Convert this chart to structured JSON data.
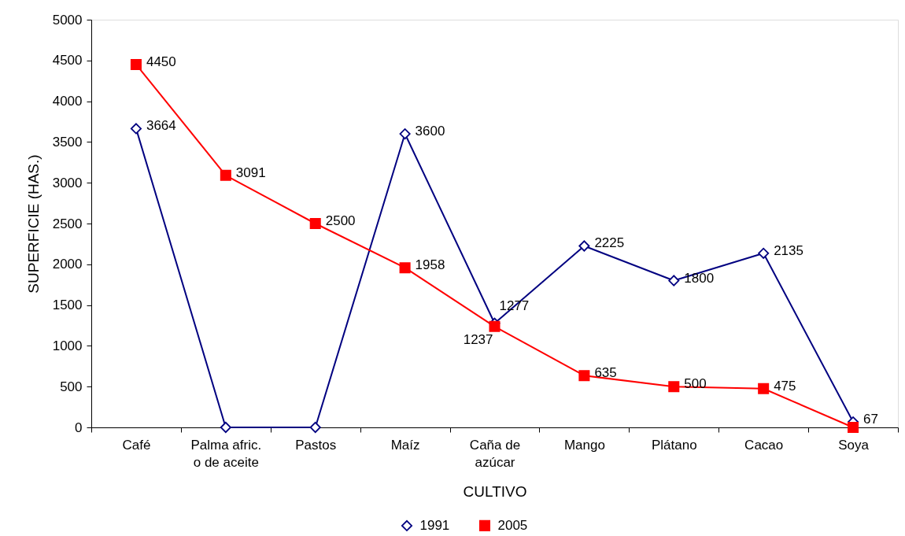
{
  "chart_data": {
    "type": "line",
    "xlabel": "CULTIVO",
    "ylabel": "SUPERFICIE (HAS.)",
    "categories": [
      "Café",
      "Palma afric. o de aceite",
      "Pastos",
      "Maíz",
      "Caña de azúcar",
      "Mango",
      "Plátano",
      "Cacao",
      "Soya"
    ],
    "series": [
      {
        "name": "1991",
        "color": "#000080",
        "marker": "diamond",
        "values": [
          3664,
          0,
          0,
          3600,
          1277,
          2225,
          1800,
          2135,
          67
        ],
        "value_labels": [
          "3664",
          null,
          null,
          "3600",
          "1277",
          "2225",
          "1800",
          "2135",
          "67"
        ]
      },
      {
        "name": "2005",
        "color": "#ff0000",
        "marker": "square",
        "values": [
          4450,
          3091,
          2500,
          1958,
          1237,
          635,
          500,
          475,
          0
        ],
        "value_labels": [
          "4450",
          "3091",
          "2500",
          "1958",
          "1237",
          "635",
          "500",
          "475",
          null
        ]
      }
    ],
    "ylim": [
      0,
      5000
    ],
    "yticks": [
      0,
      500,
      1000,
      1500,
      2000,
      2500,
      3000,
      3500,
      4000,
      4500,
      5000
    ],
    "legend": "bottom",
    "line_style": "solid"
  }
}
